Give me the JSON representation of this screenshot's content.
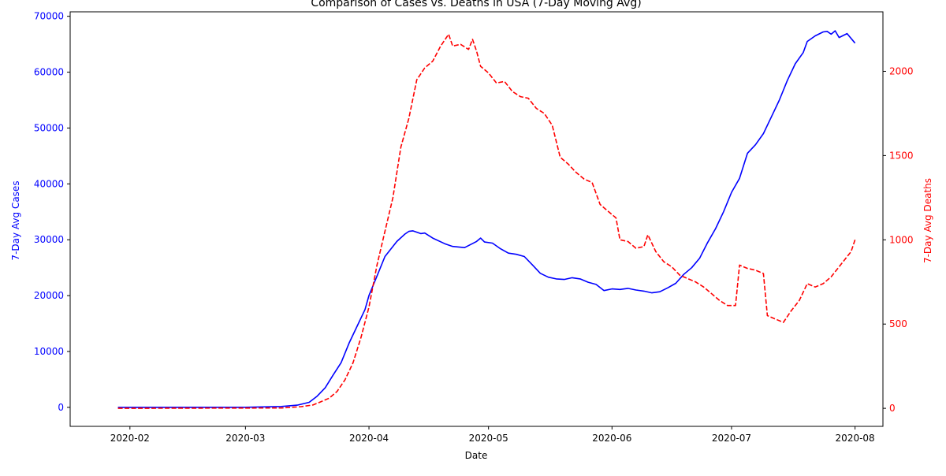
{
  "chart_data": {
    "type": "line",
    "title": "Comparison of Cases vs. Deaths in USA (7-Day Moving Avg)",
    "xlabel": "Date",
    "ylabel_left": "7-Day Avg Cases",
    "ylabel_right": "7-Day Avg Deaths",
    "x_range": [
      "2020-01-17",
      "2020-08-08"
    ],
    "x_ticks": [
      "2020-02-01",
      "2020-03-01",
      "2020-04-01",
      "2020-05-01",
      "2020-06-01",
      "2020-07-01",
      "2020-08-01"
    ],
    "x_tick_labels": [
      "2020-02",
      "2020-03",
      "2020-04",
      "2020-05",
      "2020-06",
      "2020-07",
      "2020-08"
    ],
    "y_left_range": [
      -3400,
      70800
    ],
    "y_left_ticks": [
      0,
      10000,
      20000,
      30000,
      40000,
      50000,
      60000,
      70000
    ],
    "y_right_range": [
      -107,
      2353
    ],
    "y_right_ticks": [
      0,
      500,
      1000,
      1500,
      2000
    ],
    "grid": false,
    "colors": {
      "cases": "#0000ff",
      "deaths": "#ff0000"
    },
    "series": [
      {
        "axis": "left",
        "line_style": "solid",
        "points": [
          [
            "2020-01-29",
            0
          ],
          [
            "2020-03-01",
            10
          ],
          [
            "2020-03-10",
            150
          ],
          [
            "2020-03-14",
            400
          ],
          [
            "2020-03-17",
            900
          ],
          [
            "2020-03-19",
            2000
          ],
          [
            "2020-03-21",
            3500
          ],
          [
            "2020-03-23",
            5800
          ],
          [
            "2020-03-25",
            8000
          ],
          [
            "2020-03-27",
            11500
          ],
          [
            "2020-03-29",
            14500
          ],
          [
            "2020-03-31",
            17500
          ],
          [
            "2020-04-01",
            20000
          ],
          [
            "2020-04-03",
            23500
          ],
          [
            "2020-04-05",
            27000
          ],
          [
            "2020-04-08",
            29700
          ],
          [
            "2020-04-10",
            31000
          ],
          [
            "2020-04-11",
            31500
          ],
          [
            "2020-04-12",
            31600
          ],
          [
            "2020-04-14",
            31100
          ],
          [
            "2020-04-15",
            31200
          ],
          [
            "2020-04-17",
            30300
          ],
          [
            "2020-04-20",
            29300
          ],
          [
            "2020-04-22",
            28800
          ],
          [
            "2020-04-25",
            28600
          ],
          [
            "2020-04-28",
            29700
          ],
          [
            "2020-04-29",
            30300
          ],
          [
            "2020-04-30",
            29600
          ],
          [
            "2020-05-02",
            29400
          ],
          [
            "2020-05-04",
            28400
          ],
          [
            "2020-05-06",
            27600
          ],
          [
            "2020-05-08",
            27400
          ],
          [
            "2020-05-10",
            27000
          ],
          [
            "2020-05-12",
            25500
          ],
          [
            "2020-05-14",
            24000
          ],
          [
            "2020-05-16",
            23300
          ],
          [
            "2020-05-18",
            23000
          ],
          [
            "2020-05-20",
            22900
          ],
          [
            "2020-05-22",
            23200
          ],
          [
            "2020-05-24",
            23000
          ],
          [
            "2020-05-26",
            22400
          ],
          [
            "2020-05-28",
            22000
          ],
          [
            "2020-05-30",
            20900
          ],
          [
            "2020-06-01",
            21200
          ],
          [
            "2020-06-03",
            21100
          ],
          [
            "2020-06-05",
            21300
          ],
          [
            "2020-06-07",
            21000
          ],
          [
            "2020-06-09",
            20800
          ],
          [
            "2020-06-11",
            20500
          ],
          [
            "2020-06-13",
            20700
          ],
          [
            "2020-06-15",
            21400
          ],
          [
            "2020-06-17",
            22200
          ],
          [
            "2020-06-19",
            23800
          ],
          [
            "2020-06-21",
            25000
          ],
          [
            "2020-06-23",
            26700
          ],
          [
            "2020-06-25",
            29500
          ],
          [
            "2020-06-27",
            32000
          ],
          [
            "2020-06-29",
            35000
          ],
          [
            "2020-07-01",
            38500
          ],
          [
            "2020-07-03",
            41000
          ],
          [
            "2020-07-05",
            45500
          ],
          [
            "2020-07-07",
            47000
          ],
          [
            "2020-07-09",
            49000
          ],
          [
            "2020-07-11",
            52000
          ],
          [
            "2020-07-13",
            55000
          ],
          [
            "2020-07-15",
            58500
          ],
          [
            "2020-07-17",
            61500
          ],
          [
            "2020-07-19",
            63500
          ],
          [
            "2020-07-20",
            65500
          ],
          [
            "2020-07-22",
            66500
          ],
          [
            "2020-07-24",
            67200
          ],
          [
            "2020-07-25",
            67300
          ],
          [
            "2020-07-26",
            66800
          ],
          [
            "2020-07-27",
            67400
          ],
          [
            "2020-07-28",
            66200
          ],
          [
            "2020-07-30",
            66900
          ],
          [
            "2020-08-01",
            65200
          ]
        ]
      },
      {
        "axis": "right",
        "line_style": "dashed",
        "points": [
          [
            "2020-01-29",
            0
          ],
          [
            "2020-03-10",
            2
          ],
          [
            "2020-03-15",
            10
          ],
          [
            "2020-03-18",
            20
          ],
          [
            "2020-03-20",
            40
          ],
          [
            "2020-03-22",
            60
          ],
          [
            "2020-03-24",
            100
          ],
          [
            "2020-03-26",
            170
          ],
          [
            "2020-03-28",
            270
          ],
          [
            "2020-03-30",
            420
          ],
          [
            "2020-04-01",
            600
          ],
          [
            "2020-04-03",
            850
          ],
          [
            "2020-04-05",
            1050
          ],
          [
            "2020-04-07",
            1250
          ],
          [
            "2020-04-09",
            1550
          ],
          [
            "2020-04-11",
            1720
          ],
          [
            "2020-04-13",
            1950
          ],
          [
            "2020-04-15",
            2020
          ],
          [
            "2020-04-17",
            2060
          ],
          [
            "2020-04-19",
            2150
          ],
          [
            "2020-04-21",
            2220
          ],
          [
            "2020-04-22",
            2150
          ],
          [
            "2020-04-24",
            2160
          ],
          [
            "2020-04-26",
            2130
          ],
          [
            "2020-04-27",
            2190
          ],
          [
            "2020-04-28",
            2120
          ],
          [
            "2020-04-29",
            2030
          ],
          [
            "2020-05-01",
            1990
          ],
          [
            "2020-05-03",
            1930
          ],
          [
            "2020-05-05",
            1940
          ],
          [
            "2020-05-07",
            1880
          ],
          [
            "2020-05-09",
            1850
          ],
          [
            "2020-05-11",
            1840
          ],
          [
            "2020-05-13",
            1780
          ],
          [
            "2020-05-15",
            1750
          ],
          [
            "2020-05-17",
            1680
          ],
          [
            "2020-05-19",
            1490
          ],
          [
            "2020-05-21",
            1450
          ],
          [
            "2020-05-23",
            1400
          ],
          [
            "2020-05-25",
            1360
          ],
          [
            "2020-05-27",
            1340
          ],
          [
            "2020-05-29",
            1210
          ],
          [
            "2020-05-31",
            1170
          ],
          [
            "2020-06-02",
            1130
          ],
          [
            "2020-06-03",
            1000
          ],
          [
            "2020-06-05",
            990
          ],
          [
            "2020-06-07",
            950
          ],
          [
            "2020-06-09",
            960
          ],
          [
            "2020-06-10",
            1030
          ],
          [
            "2020-06-12",
            930
          ],
          [
            "2020-06-14",
            870
          ],
          [
            "2020-06-16",
            840
          ],
          [
            "2020-06-18",
            790
          ],
          [
            "2020-06-20",
            770
          ],
          [
            "2020-06-22",
            750
          ],
          [
            "2020-06-24",
            720
          ],
          [
            "2020-06-26",
            680
          ],
          [
            "2020-06-28",
            640
          ],
          [
            "2020-06-30",
            610
          ],
          [
            "2020-07-02",
            610
          ],
          [
            "2020-07-03",
            850
          ],
          [
            "2020-07-05",
            830
          ],
          [
            "2020-07-07",
            820
          ],
          [
            "2020-07-09",
            800
          ],
          [
            "2020-07-10",
            550
          ],
          [
            "2020-07-12",
            530
          ],
          [
            "2020-07-14",
            510
          ],
          [
            "2020-07-16",
            580
          ],
          [
            "2020-07-18",
            640
          ],
          [
            "2020-07-20",
            740
          ],
          [
            "2020-07-22",
            720
          ],
          [
            "2020-07-24",
            740
          ],
          [
            "2020-07-26",
            780
          ],
          [
            "2020-07-28",
            840
          ],
          [
            "2020-07-30",
            900
          ],
          [
            "2020-07-31",
            930
          ],
          [
            "2020-08-01",
            1000
          ]
        ]
      }
    ]
  }
}
